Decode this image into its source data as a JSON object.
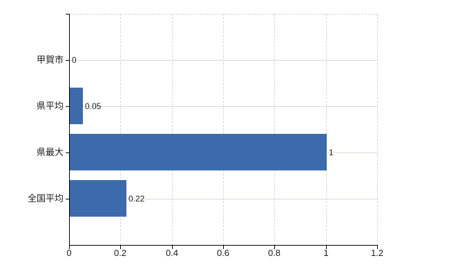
{
  "chart_data": {
    "type": "bar",
    "orientation": "horizontal",
    "title": "",
    "categories": [
      "甲賀市",
      "県平均",
      "県最大",
      "全国平均"
    ],
    "values": [
      0,
      0.05,
      1,
      0.22
    ],
    "value_labels": [
      "0",
      "0.05",
      "1",
      "0.22"
    ],
    "xlim": [
      0,
      1.2
    ],
    "x_ticks": [
      0,
      0.2,
      0.4,
      0.6,
      0.8,
      1,
      1.2
    ],
    "x_tick_labels": [
      "0",
      "0.2",
      "0.4",
      "0.6",
      "0.8",
      "1",
      "1.2"
    ],
    "grid": true,
    "legend": false,
    "colors": {
      "bar": "#3b6bac",
      "axis": "#000000",
      "grid_vertical": "#d8d2da",
      "grid_horizontal": "#d4ddd2",
      "text": "#1a1a1a",
      "background": "#ffffff"
    }
  }
}
